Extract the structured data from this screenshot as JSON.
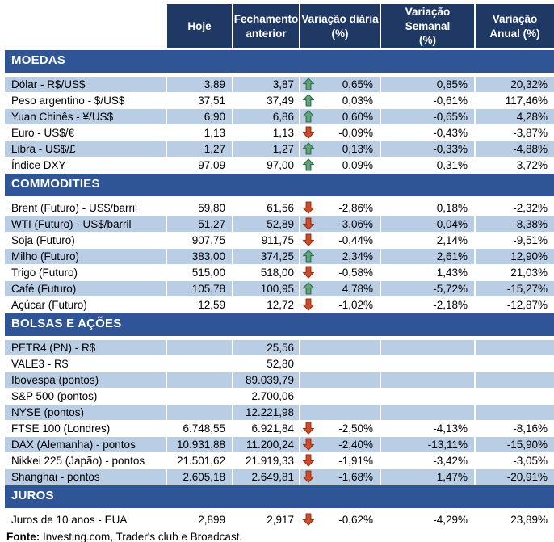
{
  "columns": [
    "Hoje",
    "Fechamento\nanterior",
    "Variação diária\n(%)",
    "Variação Semanal\n(%)",
    "Variação\nAnual (%)"
  ],
  "colors": {
    "header_bg": "#1F3864",
    "section_bg": "#2F5597",
    "band_bg": "#B9CDE5",
    "arrow_up_fill": "#5FA377",
    "arrow_up_border": "#2E6B4A",
    "arrow_down_fill": "#D04B27",
    "arrow_down_border": "#8E3317"
  },
  "sections": [
    {
      "title": "MOEDAS",
      "rows": [
        {
          "label": "Dólar - R$/US$",
          "hoje": "3,89",
          "prev": "3,87",
          "arrow": "up",
          "daily": "0,65%",
          "weekly": "0,85%",
          "annual": "20,32%",
          "shade": true
        },
        {
          "label": "Peso argentino - $/US$",
          "hoje": "37,51",
          "prev": "37,49",
          "arrow": "up",
          "daily": "0,03%",
          "weekly": "-0,61%",
          "annual": "117,46%",
          "shade": false
        },
        {
          "label": "Yuan Chinês - ¥/US$",
          "hoje": "6,90",
          "prev": "6,86",
          "arrow": "up",
          "daily": "0,60%",
          "weekly": "-0,65%",
          "annual": "4,28%",
          "shade": true
        },
        {
          "label": "Euro - US$/€",
          "hoje": "1,13",
          "prev": "1,13",
          "arrow": "down",
          "daily": "-0,09%",
          "weekly": "-0,43%",
          "annual": "-3,87%",
          "shade": false
        },
        {
          "label": "Libra - US$/£",
          "hoje": "1,27",
          "prev": "1,27",
          "arrow": "up",
          "daily": "0,13%",
          "weekly": "-0,33%",
          "annual": "-4,88%",
          "shade": true
        },
        {
          "label": "Índice DXY",
          "hoje": "97,09",
          "prev": "97,00",
          "arrow": "up",
          "daily": "0,09%",
          "weekly": "0,31%",
          "annual": "3,72%",
          "shade": false
        }
      ]
    },
    {
      "title": "COMMODITIES",
      "rows": [
        {
          "label": "Brent (Futuro) - US$/barril",
          "hoje": "59,80",
          "prev": "61,56",
          "arrow": "down",
          "daily": "-2,86%",
          "weekly": "0,18%",
          "annual": "-2,32%",
          "shade": false
        },
        {
          "label": "WTI (Futuro) - US$/barril",
          "hoje": "51,27",
          "prev": "52,89",
          "arrow": "down",
          "daily": "-3,06%",
          "weekly": "-0,04%",
          "annual": "-8,38%",
          "shade": true
        },
        {
          "label": "Soja (Futuro)",
          "hoje": "907,75",
          "prev": "911,75",
          "arrow": "down",
          "daily": "-0,44%",
          "weekly": "2,14%",
          "annual": "-9,51%",
          "shade": false
        },
        {
          "label": "Milho (Futuro)",
          "hoje": "383,00",
          "prev": "374,25",
          "arrow": "up",
          "daily": "2,34%",
          "weekly": "2,61%",
          "annual": "12,90%",
          "shade": true
        },
        {
          "label": "Trigo (Futuro)",
          "hoje": "515,00",
          "prev": "518,00",
          "arrow": "down",
          "daily": "-0,58%",
          "weekly": "1,43%",
          "annual": "21,03%",
          "shade": false
        },
        {
          "label": "Café (Futuro)",
          "hoje": "105,78",
          "prev": "100,95",
          "arrow": "up",
          "daily": "4,78%",
          "weekly": "-5,72%",
          "annual": "-15,27%",
          "shade": true
        },
        {
          "label": "Açúcar (Futuro)",
          "hoje": "12,59",
          "prev": "12,72",
          "arrow": "down",
          "daily": "-1,02%",
          "weekly": "-2,18%",
          "annual": "-12,87%",
          "shade": false
        }
      ]
    },
    {
      "title": "BOLSAS E AÇÕES",
      "rows": [
        {
          "label": "PETR4 (PN) - R$",
          "hoje": "",
          "prev": "25,56",
          "arrow": "",
          "daily": "",
          "weekly": "",
          "annual": "",
          "shade": true
        },
        {
          "label": "VALE3 - R$",
          "hoje": "",
          "prev": "52,80",
          "arrow": "",
          "daily": "",
          "weekly": "",
          "annual": "",
          "shade": false
        },
        {
          "label": "Ibovespa (pontos)",
          "hoje": "",
          "prev": "89.039,79",
          "arrow": "",
          "daily": "",
          "weekly": "",
          "annual": "",
          "shade": true
        },
        {
          "label": "S&P 500 (pontos)",
          "hoje": "",
          "prev": "2.700,06",
          "arrow": "",
          "daily": "",
          "weekly": "",
          "annual": "",
          "shade": false
        },
        {
          "label": "NYSE (pontos)",
          "hoje": "",
          "prev": "12.221,98",
          "arrow": "",
          "daily": "",
          "weekly": "",
          "annual": "",
          "shade": true
        },
        {
          "label": "FTSE 100 (Londres)",
          "hoje": "6.748,55",
          "prev": "6.921,84",
          "arrow": "down",
          "daily": "-2,50%",
          "weekly": "-4,13%",
          "annual": "-8,16%",
          "shade": false
        },
        {
          "label": "DAX (Alemanha) - pontos",
          "hoje": "10.931,88",
          "prev": "11.200,24",
          "arrow": "down",
          "daily": "-2,40%",
          "weekly": "-13,11%",
          "annual": "-15,90%",
          "shade": true
        },
        {
          "label": "Nikkei 225 (Japão) - pontos",
          "hoje": "21.501,62",
          "prev": "21.919,33",
          "arrow": "down",
          "daily": "-1,91%",
          "weekly": "-3,42%",
          "annual": "-3,05%",
          "shade": false
        },
        {
          "label": "Shanghai - pontos",
          "hoje": "2.605,18",
          "prev": "2.649,81",
          "arrow": "down",
          "daily": "-1,68%",
          "weekly": "1,47%",
          "annual": "-20,91%",
          "shade": true
        }
      ]
    },
    {
      "title": "JUROS",
      "rows": [
        {
          "label": "Juros de 10 anos - EUA",
          "hoje": "2,899",
          "prev": "2,917",
          "arrow": "down",
          "daily": "-0,62%",
          "weekly": "-4,29%",
          "annual": "23,89%",
          "shade": false
        }
      ]
    }
  ],
  "footer": {
    "label": "Fonte:",
    "text": " Investing.com, Trader's club e Broadcast."
  }
}
